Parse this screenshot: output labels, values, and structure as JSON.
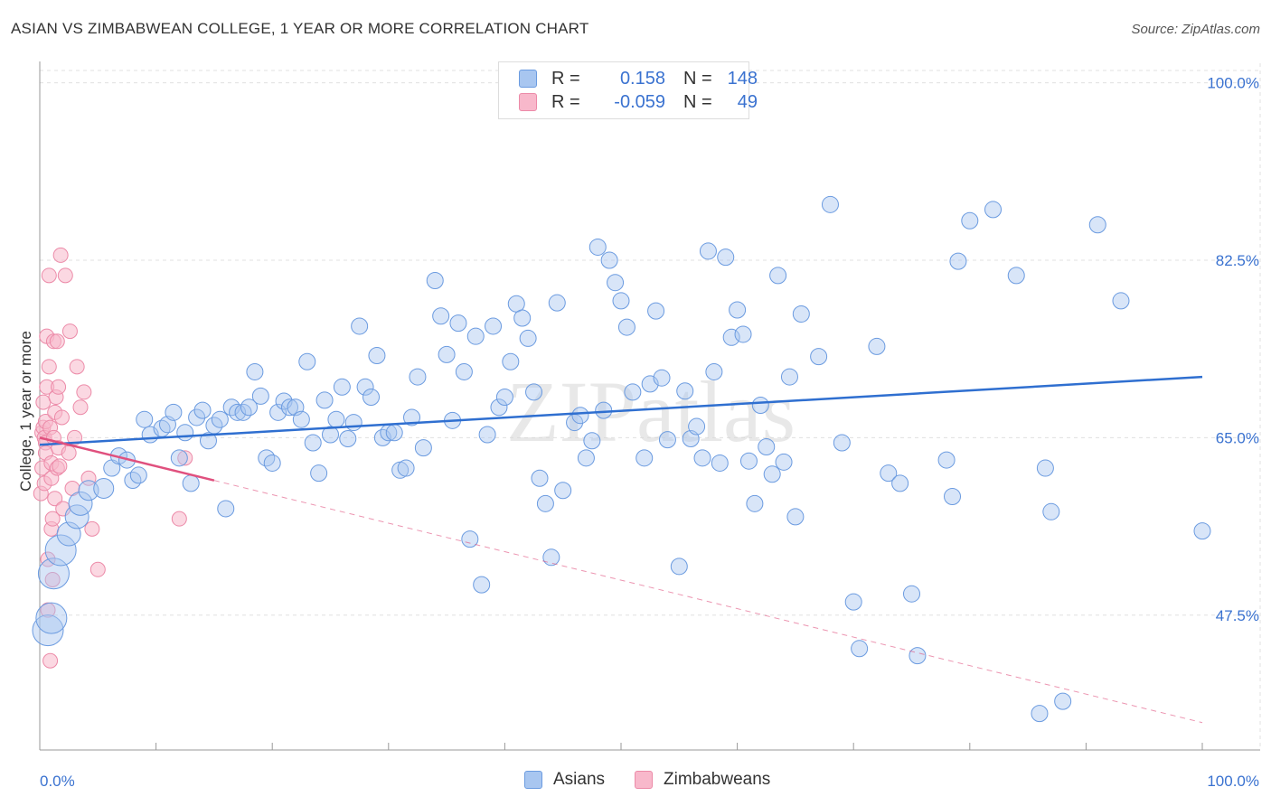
{
  "title": "ASIAN VS ZIMBABWEAN COLLEGE, 1 YEAR OR MORE CORRELATION CHART",
  "source": "Source: ZipAtlas.com",
  "watermark": "ZIPatlas",
  "legend": {
    "rows": [
      {
        "r_label": "R =",
        "r_value": "0.158",
        "n_label": "N =",
        "n_value": "148"
      },
      {
        "r_label": "R =",
        "r_value": "-0.059",
        "n_label": "N =",
        "n_value": "49"
      }
    ]
  },
  "bottom_legend": [
    "Asians",
    "Zimbabweans"
  ],
  "colors": {
    "asian_fill": "#a8c6f0",
    "asian_stroke": "#6b9be0",
    "asian_line": "#2f6fd0",
    "zim_fill": "#f8b8cb",
    "zim_stroke": "#ec8aa8",
    "zim_line": "#e0507e",
    "axis_text": "#3a72d0",
    "grid": "#e0e0e0"
  },
  "chart_data": {
    "type": "scatter",
    "title": "ASIAN VS ZIMBABWEAN COLLEGE, 1 YEAR OR MORE CORRELATION CHART",
    "xlabel": "",
    "ylabel": "College, 1 year or more",
    "xlim": [
      0,
      100
    ],
    "ylim": [
      34.2,
      103
    ],
    "x_tick_labels": [
      "0.0%",
      "100.0%"
    ],
    "y_ticks": [
      47.5,
      65.0,
      82.5,
      100.0
    ],
    "y_tick_labels": [
      "47.5%",
      "65.0%",
      "82.5%",
      "100.0%"
    ],
    "grid": true,
    "legend_position": "top-center",
    "series": [
      {
        "name": "Asians",
        "r": 0.158,
        "n": 148,
        "trend": {
          "x": [
            0,
            100
          ],
          "y": [
            64.3,
            71.0
          ]
        },
        "points": [
          [
            0.7,
            46.0
          ],
          [
            1.0,
            47.2
          ],
          [
            1.2,
            51.6
          ],
          [
            1.8,
            53.9
          ],
          [
            2.5,
            55.5
          ],
          [
            3.2,
            57.2
          ],
          [
            3.5,
            58.5
          ],
          [
            4.2,
            59.8
          ],
          [
            5.5,
            60.0
          ],
          [
            6.2,
            62.0
          ],
          [
            6.8,
            63.2
          ],
          [
            7.5,
            62.8
          ],
          [
            8.0,
            60.8
          ],
          [
            8.5,
            61.3
          ],
          [
            9.0,
            66.8
          ],
          [
            9.5,
            65.3
          ],
          [
            10.5,
            65.9
          ],
          [
            11.0,
            66.3
          ],
          [
            11.5,
            67.5
          ],
          [
            12.0,
            63.0
          ],
          [
            12.5,
            65.5
          ],
          [
            13.0,
            60.5
          ],
          [
            13.5,
            67.0
          ],
          [
            14.0,
            67.7
          ],
          [
            14.5,
            64.7
          ],
          [
            15.0,
            66.2
          ],
          [
            15.5,
            66.8
          ],
          [
            16.0,
            58.0
          ],
          [
            16.5,
            68.0
          ],
          [
            17.0,
            67.5
          ],
          [
            17.5,
            67.5
          ],
          [
            18.0,
            68.0
          ],
          [
            18.5,
            71.5
          ],
          [
            19.0,
            69.1
          ],
          [
            19.5,
            63.0
          ],
          [
            20.0,
            62.5
          ],
          [
            20.5,
            67.5
          ],
          [
            21.0,
            68.6
          ],
          [
            21.5,
            68.0
          ],
          [
            22.0,
            68.0
          ],
          [
            22.5,
            66.8
          ],
          [
            23.0,
            72.5
          ],
          [
            23.5,
            64.5
          ],
          [
            24.0,
            61.5
          ],
          [
            24.5,
            68.7
          ],
          [
            25.0,
            65.3
          ],
          [
            25.5,
            66.8
          ],
          [
            26.0,
            70.0
          ],
          [
            26.5,
            64.9
          ],
          [
            27.0,
            66.5
          ],
          [
            27.5,
            76.0
          ],
          [
            28.0,
            70.0
          ],
          [
            28.5,
            69.0
          ],
          [
            29.0,
            73.1
          ],
          [
            29.5,
            65.0
          ],
          [
            30.0,
            65.5
          ],
          [
            30.5,
            65.5
          ],
          [
            31.0,
            61.8
          ],
          [
            31.5,
            62.0
          ],
          [
            32.0,
            67.0
          ],
          [
            32.5,
            71.0
          ],
          [
            33.0,
            64.0
          ],
          [
            34.0,
            80.5
          ],
          [
            34.5,
            77.0
          ],
          [
            35.0,
            73.2
          ],
          [
            35.5,
            66.7
          ],
          [
            36.0,
            76.3
          ],
          [
            36.5,
            71.5
          ],
          [
            37.0,
            55.0
          ],
          [
            37.5,
            75.0
          ],
          [
            38.0,
            50.5
          ],
          [
            38.5,
            65.3
          ],
          [
            39.0,
            76.0
          ],
          [
            39.5,
            68.0
          ],
          [
            40.0,
            69.0
          ],
          [
            40.5,
            72.5
          ],
          [
            41.0,
            78.2
          ],
          [
            41.5,
            76.8
          ],
          [
            42.0,
            74.8
          ],
          [
            42.5,
            69.5
          ],
          [
            43.0,
            61.0
          ],
          [
            43.5,
            58.5
          ],
          [
            44.0,
            53.2
          ],
          [
            44.5,
            78.3
          ],
          [
            45.0,
            59.8
          ],
          [
            46.0,
            66.5
          ],
          [
            46.5,
            67.2
          ],
          [
            47.0,
            63.0
          ],
          [
            47.5,
            64.7
          ],
          [
            48.0,
            83.8
          ],
          [
            48.5,
            67.7
          ],
          [
            49.0,
            82.5
          ],
          [
            49.5,
            80.3
          ],
          [
            50.0,
            78.5
          ],
          [
            50.5,
            75.9
          ],
          [
            51.0,
            69.5
          ],
          [
            52.0,
            63.0
          ],
          [
            52.5,
            70.3
          ],
          [
            53.0,
            77.5
          ],
          [
            53.5,
            70.9
          ],
          [
            54.0,
            64.8
          ],
          [
            55.0,
            52.3
          ],
          [
            55.5,
            69.6
          ],
          [
            56.0,
            64.9
          ],
          [
            56.5,
            66.1
          ],
          [
            57.0,
            63.0
          ],
          [
            57.5,
            83.4
          ],
          [
            58.0,
            71.5
          ],
          [
            58.5,
            62.5
          ],
          [
            59.0,
            82.8
          ],
          [
            59.5,
            74.9
          ],
          [
            60.0,
            77.6
          ],
          [
            60.5,
            75.2
          ],
          [
            61.0,
            62.7
          ],
          [
            61.5,
            58.5
          ],
          [
            62.0,
            68.2
          ],
          [
            62.5,
            64.1
          ],
          [
            63.0,
            61.4
          ],
          [
            63.5,
            81.0
          ],
          [
            64.0,
            62.6
          ],
          [
            64.5,
            71.0
          ],
          [
            65.0,
            57.2
          ],
          [
            65.5,
            77.2
          ],
          [
            67.0,
            73.0
          ],
          [
            68.0,
            88.0
          ],
          [
            69.0,
            64.5
          ],
          [
            70.0,
            48.8
          ],
          [
            70.5,
            44.2
          ],
          [
            72.0,
            74.0
          ],
          [
            73.0,
            61.5
          ],
          [
            74.0,
            60.5
          ],
          [
            75.0,
            49.6
          ],
          [
            75.5,
            43.5
          ],
          [
            78.0,
            62.8
          ],
          [
            78.5,
            59.2
          ],
          [
            79.0,
            82.4
          ],
          [
            80.0,
            86.4
          ],
          [
            82.0,
            87.5
          ],
          [
            84.0,
            81.0
          ],
          [
            86.0,
            37.8
          ],
          [
            86.5,
            62.0
          ],
          [
            87.0,
            57.7
          ],
          [
            88.0,
            39.0
          ],
          [
            91.0,
            86.0
          ],
          [
            93.0,
            78.5
          ],
          [
            100.0,
            55.8
          ]
        ]
      },
      {
        "name": "Zimbabweans",
        "r": -0.059,
        "n": 49,
        "trend": {
          "x": [
            0,
            100
          ],
          "y": [
            65.0,
            36.9
          ],
          "solid_until_x": 15
        },
        "points": [
          [
            0.1,
            59.5
          ],
          [
            0.2,
            62.0
          ],
          [
            0.2,
            65.5
          ],
          [
            0.3,
            66.0
          ],
          [
            0.3,
            68.5
          ],
          [
            0.4,
            65.0
          ],
          [
            0.4,
            60.5
          ],
          [
            0.5,
            64.5
          ],
          [
            0.5,
            66.6
          ],
          [
            0.5,
            63.5
          ],
          [
            0.6,
            70.0
          ],
          [
            0.6,
            75.0
          ],
          [
            0.7,
            53.0
          ],
          [
            0.7,
            48.0
          ],
          [
            0.8,
            72.0
          ],
          [
            0.8,
            81.0
          ],
          [
            0.9,
            43.0
          ],
          [
            0.9,
            66.0
          ],
          [
            1.0,
            56.0
          ],
          [
            1.0,
            61.0
          ],
          [
            1.0,
            62.5
          ],
          [
            1.1,
            57.0
          ],
          [
            1.1,
            51.0
          ],
          [
            1.2,
            74.5
          ],
          [
            1.2,
            65.0
          ],
          [
            1.3,
            67.5
          ],
          [
            1.3,
            59.0
          ],
          [
            1.4,
            69.0
          ],
          [
            1.5,
            74.5
          ],
          [
            1.5,
            62.0
          ],
          [
            1.6,
            64.0
          ],
          [
            1.6,
            70.0
          ],
          [
            1.7,
            62.2
          ],
          [
            1.8,
            83.0
          ],
          [
            1.9,
            67.0
          ],
          [
            2.0,
            58.0
          ],
          [
            2.2,
            81.0
          ],
          [
            2.5,
            63.5
          ],
          [
            2.6,
            75.5
          ],
          [
            2.8,
            60.0
          ],
          [
            3.0,
            65.0
          ],
          [
            3.2,
            72.0
          ],
          [
            3.5,
            68.0
          ],
          [
            3.8,
            69.5
          ],
          [
            4.2,
            61.0
          ],
          [
            4.5,
            56.0
          ],
          [
            5.0,
            52.0
          ],
          [
            12.0,
            57.0
          ],
          [
            12.5,
            63.0
          ]
        ]
      }
    ]
  }
}
